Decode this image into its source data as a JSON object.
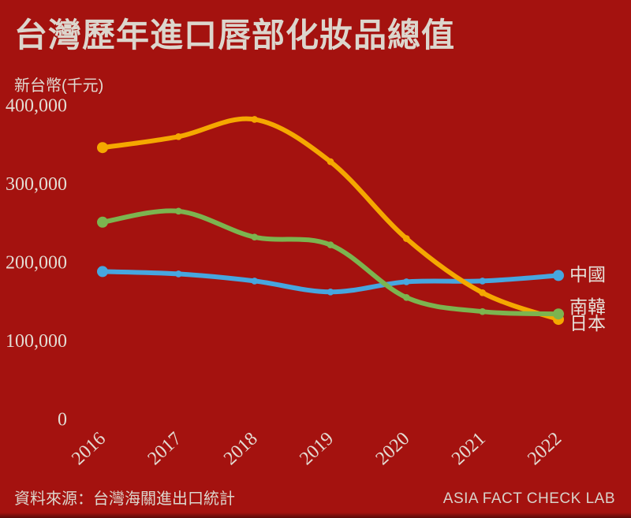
{
  "page": {
    "background_color": "#A4120F",
    "text_color": "#DCD6CD"
  },
  "header": {
    "title": "台灣歷年進口唇部化妝品總值",
    "unit_label": "新台幣(千元)"
  },
  "chart_data": {
    "type": "line",
    "title": "台灣歷年進口唇部化妝品總值",
    "ylabel": "新台幣(千元)",
    "categories": [
      "2016",
      "2017",
      "2018",
      "2019",
      "2020",
      "2021",
      "2022"
    ],
    "series": [
      {
        "key": "japan",
        "name": "日本",
        "color": "#F5A800",
        "values": [
          346000,
          360000,
          382000,
          328000,
          230000,
          161000,
          127000
        ]
      },
      {
        "key": "korea",
        "name": "南韓",
        "color": "#7CB44F",
        "values": [
          251000,
          265000,
          232000,
          222000,
          155000,
          137000,
          134000
        ]
      },
      {
        "key": "china",
        "name": "中國",
        "color": "#47A6DF",
        "values": [
          188000,
          185000,
          176000,
          162000,
          175000,
          176000,
          183000
        ]
      }
    ],
    "ylim": [
      0,
      400000
    ],
    "y_ticks": [
      0,
      100000,
      200000,
      300000,
      400000
    ],
    "grid": false,
    "legend_position": "right-of-line-end",
    "draw_order": [
      "china",
      "japan",
      "korea"
    ],
    "x_tick_rotation_deg": -43
  },
  "footer": {
    "source": "資料來源：台灣海關進出口統計",
    "credit": "ASIA FACT CHECK LAB"
  }
}
